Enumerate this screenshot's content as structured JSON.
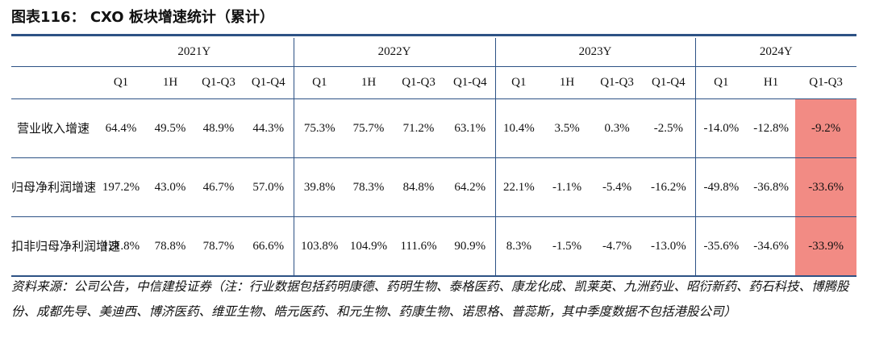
{
  "title": "图表116： CXO 板块增速统计（累计）",
  "years": [
    "2021Y",
    "2022Y",
    "2023Y",
    "2024Y"
  ],
  "quarters": [
    [
      "Q1",
      "1H",
      "Q1-Q3",
      "Q1-Q4"
    ],
    [
      "Q1",
      "1H",
      "Q1-Q3",
      "Q1-Q4"
    ],
    [
      "Q1",
      "1H",
      "Q1-Q3",
      "Q1-Q4"
    ],
    [
      "Q1",
      "H1",
      "Q1-Q3"
    ]
  ],
  "rows": [
    {
      "label": "营业收入增速",
      "values": [
        "64.4%",
        "49.5%",
        "48.9%",
        "44.3%",
        "75.3%",
        "75.7%",
        "71.2%",
        "63.1%",
        "10.4%",
        "3.5%",
        "0.3%",
        "-2.5%",
        "-14.0%",
        "-12.8%",
        "-9.2%"
      ]
    },
    {
      "label": "归母净利润增速",
      "values": [
        "197.2%",
        "43.0%",
        "46.7%",
        "57.0%",
        "39.8%",
        "78.3%",
        "84.8%",
        "64.2%",
        "22.1%",
        "-1.1%",
        "-5.4%",
        "-16.2%",
        "-49.8%",
        "-36.8%",
        "-33.6%"
      ]
    },
    {
      "label": "扣非归母净利润增速",
      "values": [
        "121.8%",
        "78.8%",
        "78.7%",
        "66.6%",
        "103.8%",
        "104.9%",
        "111.6%",
        "90.9%",
        "8.3%",
        "-1.5%",
        "-4.7%",
        "-13.0%",
        "-35.6%",
        "-34.6%",
        "-33.9%"
      ]
    }
  ],
  "highlight_color": "#f28b84",
  "rule_color": "#2d5285",
  "source": "资料来源：公司公告，中信建投证券（注：行业数据包括药明康德、药明生物、泰格医药、康龙化成、凯莱英、九洲药业、昭衍新药、药石科技、博腾股份、成都先导、美迪西、博济医药、维亚生物、皓元医药、和元生物、药康生物、诺思格、普蕊斯，其中季度数据不包括港股公司）"
}
